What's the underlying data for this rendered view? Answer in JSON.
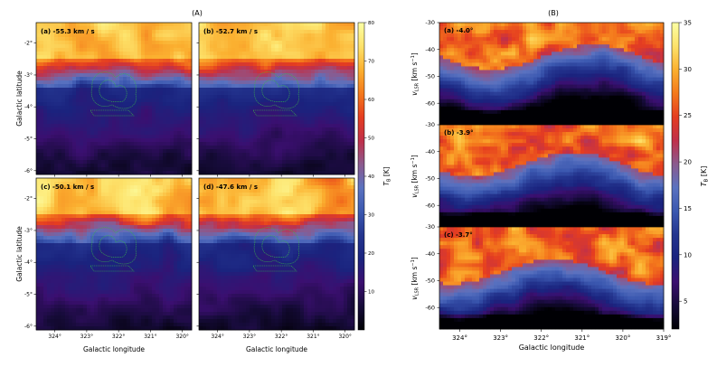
{
  "figure": {
    "left_title": "(A)",
    "right_title": "(B)",
    "colors": {
      "cmap": [
        "#000004",
        "#160b39",
        "#3b0f70",
        "#1a237e",
        "#24358f",
        "#3b58b0",
        "#5a72c0",
        "#8b5a8e",
        "#c0304a",
        "#e53d20",
        "#f4791c",
        "#fbb030",
        "#fde26a",
        "#fcffa4"
      ]
    }
  },
  "chart_data": [
    {
      "type": "heatmap",
      "name": "panel-A-channel-maps",
      "title": "(A)",
      "xlabel": "Galactic longitude",
      "ylabel": "Galactic latitude",
      "xlim": [
        324.6,
        319.8
      ],
      "ylim": [
        -6.1,
        -1.4
      ],
      "x_ticks": [
        "324°",
        "323°",
        "322°",
        "321°",
        "320°"
      ],
      "y_ticks": [
        "-2°",
        "-3°",
        "-4°",
        "-5°",
        "-6°"
      ],
      "panels": [
        {
          "label": "(a) -55.3 km / s",
          "bright_mean_K": 55
        },
        {
          "label": "(b) -52.7 km / s",
          "bright_mean_K": 53
        },
        {
          "label": "(c) -50.1 km / s",
          "bright_mean_K": 58
        },
        {
          "label": "(d) -47.6 km / s",
          "bright_mean_K": 56
        }
      ],
      "colorbar": {
        "label": "T_B [K]",
        "ticks": [
          10,
          20,
          30,
          40,
          50,
          60,
          70,
          80
        ],
        "range": [
          0,
          80
        ]
      },
      "overlay": "green contour (source outline)"
    },
    {
      "type": "heatmap",
      "name": "panel-B-position-velocity",
      "title": "(B)",
      "xlabel": "Galactic longitude",
      "ylabel": "v_LSR [km s^-1]",
      "xlim": [
        324.5,
        319.0
      ],
      "ylim": [
        -68,
        -30
      ],
      "x_ticks": [
        "324°",
        "323°",
        "322°",
        "321°",
        "320°",
        "319°"
      ],
      "y_ticks": [
        -30,
        -40,
        -50,
        -60
      ],
      "panels": [
        {
          "label": "(a) -4.0°"
        },
        {
          "label": "(b) -3.9°"
        },
        {
          "label": "(c) -3.7°"
        }
      ],
      "colorbar": {
        "label": "T_B [K]",
        "ticks": [
          5,
          10,
          15,
          20,
          25,
          30,
          35
        ],
        "range": [
          2,
          35
        ]
      }
    }
  ]
}
